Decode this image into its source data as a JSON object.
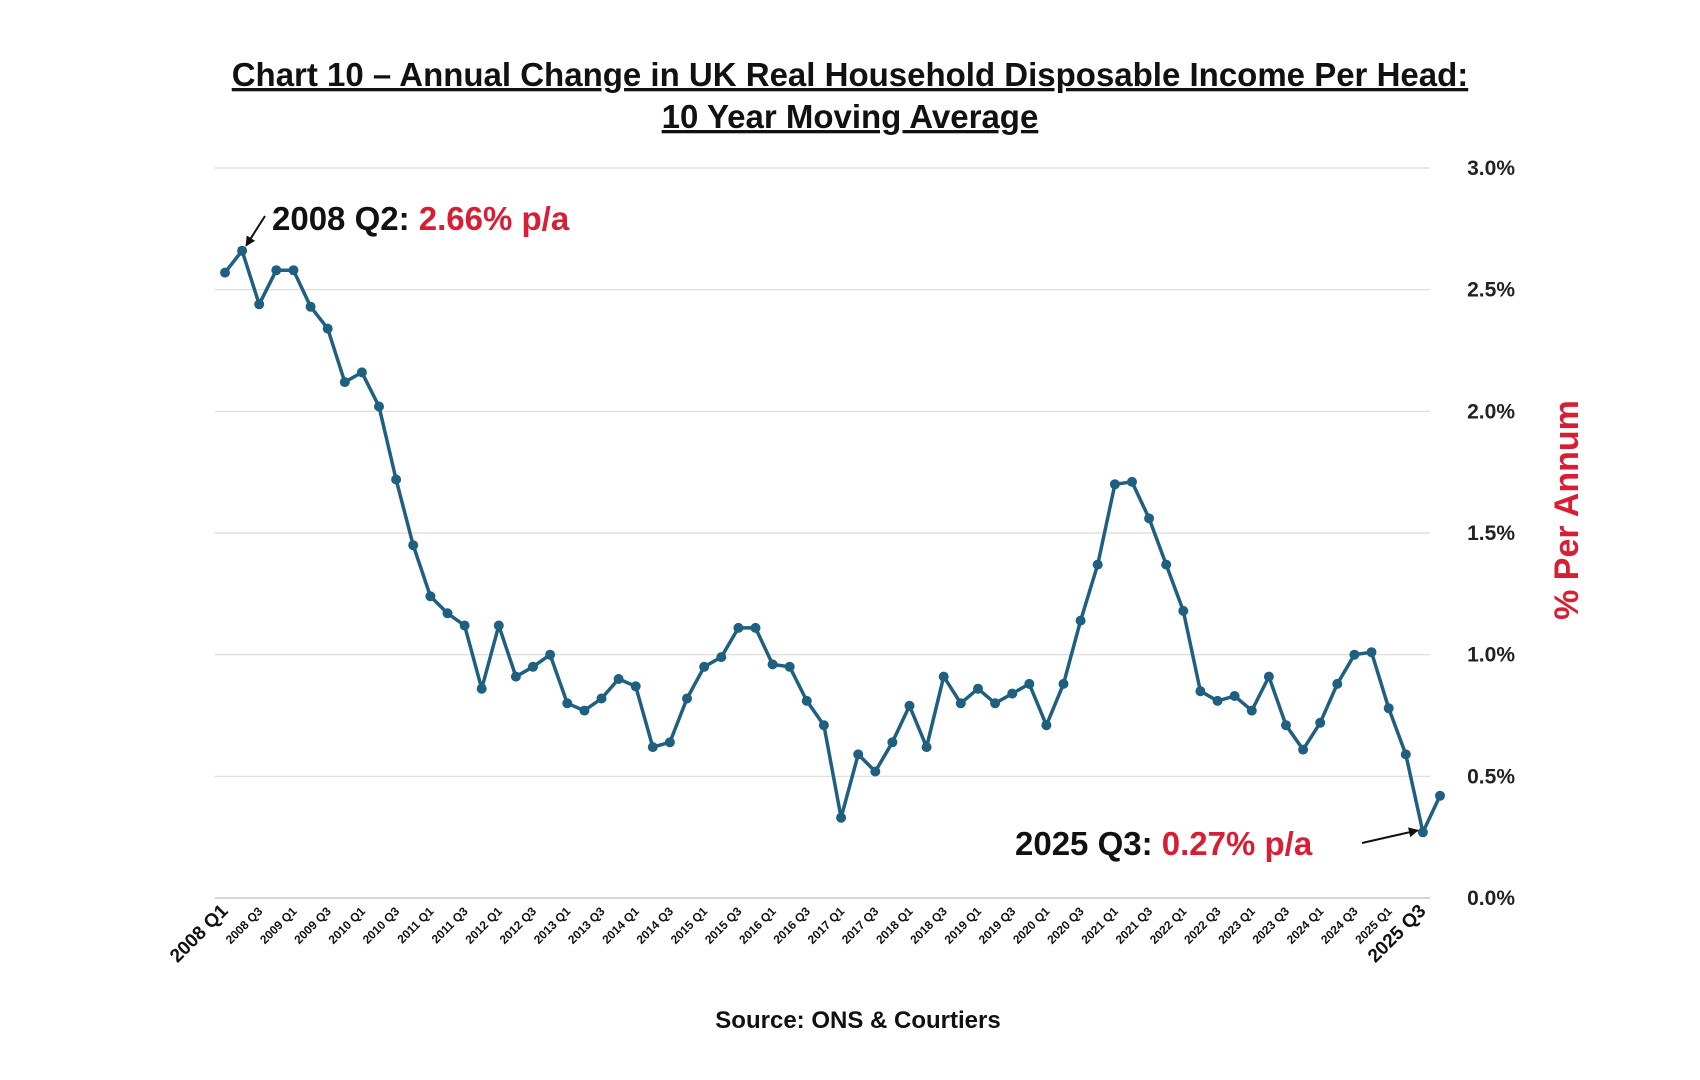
{
  "chart_data": {
    "type": "line",
    "title_line1": "Chart 10 – Annual Change in UK Real Household Disposable Income Per Head:",
    "title_line2": "10 Year Moving Average",
    "ylabel": "% Per Annum",
    "source": "Source: ONS & Courtiers",
    "ylim": [
      0,
      3.0
    ],
    "y_ticks": [
      "0.0%",
      "0.5%",
      "1.0%",
      "1.5%",
      "2.0%",
      "2.5%",
      "3.0%"
    ],
    "y_axis_position": "right",
    "grid": true,
    "line_color": "#1f5f80",
    "accent_color": "#d81e34",
    "x_tick_labels": [
      "2008 Q1",
      "2008 Q3",
      "2009 Q1",
      "2009 Q3",
      "2010 Q1",
      "2010 Q3",
      "2011 Q1",
      "2011 Q3",
      "2012 Q1",
      "2012 Q3",
      "2013 Q1",
      "2013 Q3",
      "2014 Q1",
      "2014 Q3",
      "2015 Q1",
      "2015 Q3",
      "2016 Q1",
      "2016 Q3",
      "2017 Q1",
      "2017 Q3",
      "2018 Q1",
      "2018 Q3",
      "2019 Q1",
      "2019 Q3",
      "2020 Q1",
      "2020 Q3",
      "2021 Q1",
      "2021 Q3",
      "2022 Q1",
      "2022 Q3",
      "2023 Q1",
      "2023 Q3",
      "2024 Q1",
      "2024 Q3",
      "2025 Q1",
      "2025 Q3"
    ],
    "x_tick_labels_emphasized": [
      "2008 Q1",
      "2025 Q3"
    ],
    "values": [
      2.57,
      2.66,
      2.44,
      2.58,
      2.58,
      2.43,
      2.34,
      2.12,
      2.16,
      2.02,
      1.72,
      1.45,
      1.24,
      1.17,
      1.12,
      0.86,
      1.12,
      0.91,
      0.95,
      1.0,
      0.8,
      0.77,
      0.82,
      0.9,
      0.87,
      0.62,
      0.64,
      0.82,
      0.95,
      0.99,
      1.11,
      1.11,
      0.96,
      0.95,
      0.81,
      0.71,
      0.33,
      0.59,
      0.52,
      0.64,
      0.79,
      0.62,
      0.91,
      0.8,
      0.86,
      0.8,
      0.84,
      0.88,
      0.71,
      0.88,
      1.14,
      1.37,
      1.7,
      1.71,
      1.56,
      1.37,
      1.18,
      0.85,
      0.81,
      0.83,
      0.77,
      0.91,
      0.71,
      0.61,
      0.72,
      0.88,
      1.0,
      1.01,
      0.78,
      0.59,
      0.27,
      0.42
    ],
    "annotations": [
      {
        "label": "2008 Q2: ",
        "value_text": "2.66% p/a",
        "point_index": 1
      },
      {
        "label": "2025 Q3: ",
        "value_text": "0.27% p/a",
        "point_index": 70
      }
    ]
  }
}
